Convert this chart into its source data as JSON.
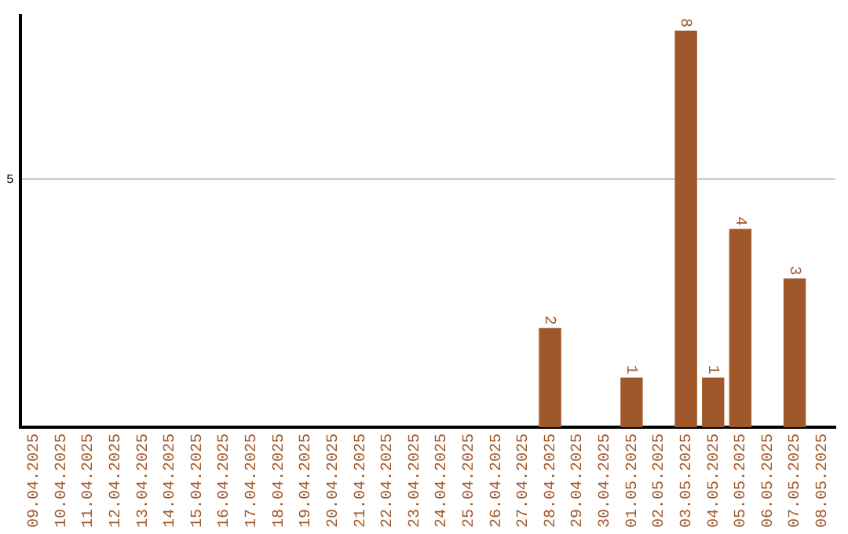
{
  "chart_data": {
    "type": "bar",
    "categories": [
      "09.04.2025",
      "10.04.2025",
      "11.04.2025",
      "12.04.2025",
      "13.04.2025",
      "14.04.2025",
      "15.04.2025",
      "16.04.2025",
      "17.04.2025",
      "18.04.2025",
      "19.04.2025",
      "20.04.2025",
      "21.04.2025",
      "22.04.2025",
      "23.04.2025",
      "24.04.2025",
      "25.04.2025",
      "26.04.2025",
      "27.04.2025",
      "28.04.2025",
      "29.04.2025",
      "30.04.2025",
      "01.05.2025",
      "02.05.2025",
      "03.05.2025",
      "04.05.2025",
      "05.05.2025",
      "06.05.2025",
      "07.05.2025",
      "08.05.2025"
    ],
    "values": [
      null,
      null,
      null,
      null,
      null,
      null,
      null,
      null,
      null,
      null,
      null,
      null,
      null,
      null,
      null,
      null,
      null,
      null,
      null,
      2,
      null,
      null,
      1,
      null,
      8,
      1,
      4,
      null,
      3,
      null
    ],
    "color": "#a0582a",
    "ylim": [
      0,
      8.3
    ],
    "yticks": [
      5
    ],
    "grid": "y",
    "data_labels": true,
    "legend": false
  }
}
